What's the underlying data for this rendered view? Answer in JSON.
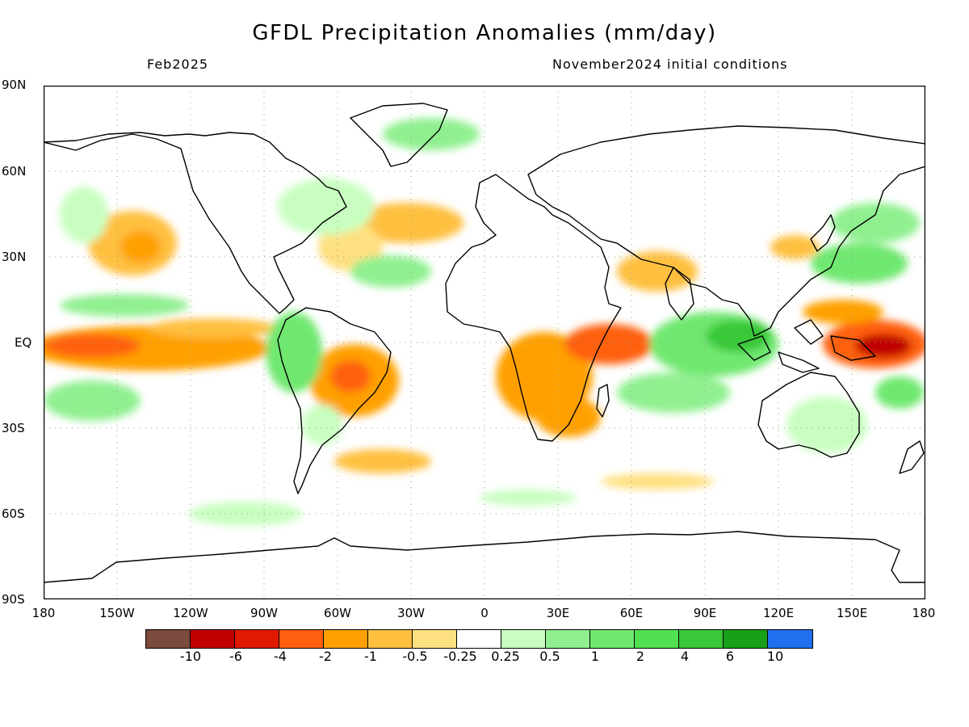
{
  "title": "GFDL Precipitation Anomalies (mm/day)",
  "subtitle_left": "Feb2025",
  "subtitle_right": "November2024 initial conditions",
  "lat_labels": [
    "90N",
    "60N",
    "30N",
    "EQ",
    "30S",
    "60S",
    "90S"
  ],
  "lon_labels": [
    "180",
    "150W",
    "120W",
    "90W",
    "60W",
    "30W",
    "0",
    "30E",
    "60E",
    "90E",
    "120E",
    "150E",
    "180"
  ],
  "legend": {
    "colors": [
      "#7a4a3c",
      "#c00000",
      "#e01a00",
      "#ff6010",
      "#ffa000",
      "#ffc040",
      "#ffe080",
      "#ffffff",
      "#c8ffc0",
      "#90f090",
      "#70e870",
      "#50e050",
      "#38c838",
      "#18a018",
      "#2070f0"
    ],
    "labels": [
      "-10",
      "-6",
      "-4",
      "-2",
      "-1",
      "-0.5",
      "-0.25",
      "0.25",
      "0.5",
      "1",
      "2",
      "4",
      "6",
      "10"
    ]
  }
}
